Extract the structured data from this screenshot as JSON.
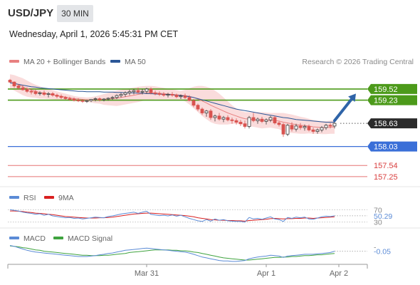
{
  "header": {
    "symbol": "USD/JPY",
    "timeframe": "30 MIN",
    "datetime": "Wednesday, April 1, 2026 5:45:31 PM CET",
    "credit": "Research © 2026 Trading Central"
  },
  "colors": {
    "bollinger_fill": "#f9d6d6",
    "ma20": "#e88080",
    "ma50": "#2b5797",
    "resistance": "#4c9a1a",
    "support_blue": "#3a6fd8",
    "support_red": "#e57373",
    "candle_up": "#3a3a3a",
    "candle_down": "#d9534f",
    "arrow": "#2f64a8",
    "rsi": "#5b8bd6",
    "rsi_ma": "#d92020",
    "macd": "#5b8bd6",
    "macd_signal": "#3fa33f"
  },
  "legend": {
    "ma20": "MA 20 + Bollinger Bands",
    "ma50": "MA 50",
    "rsi": "RSI",
    "rsi_ma": "9MA",
    "macd": "MACD",
    "macd_signal": "MACD Signal"
  },
  "chart_data": [
    {
      "type": "candlestick",
      "ylim": [
        157.1,
        159.98
      ],
      "x_ticks": [
        {
          "label": "Mar 31",
          "index": 32
        },
        {
          "label": "Apr 1",
          "index": 60
        },
        {
          "label": "Apr 2",
          "index": 77
        }
      ],
      "candles": [
        [
          159.75,
          159.78,
          159.68,
          159.7
        ],
        [
          159.7,
          159.72,
          159.55,
          159.6
        ],
        [
          159.6,
          159.65,
          159.5,
          159.55
        ],
        [
          159.55,
          159.62,
          159.48,
          159.5
        ],
        [
          159.5,
          159.56,
          159.42,
          159.46
        ],
        [
          159.46,
          159.52,
          159.38,
          159.45
        ],
        [
          159.45,
          159.5,
          159.36,
          159.4
        ],
        [
          159.4,
          159.46,
          159.35,
          159.42
        ],
        [
          159.42,
          159.48,
          159.34,
          159.38
        ],
        [
          159.38,
          159.44,
          159.3,
          159.4
        ],
        [
          159.4,
          159.44,
          159.32,
          159.36
        ],
        [
          159.36,
          159.4,
          159.28,
          159.33
        ],
        [
          159.33,
          159.38,
          159.26,
          159.3
        ],
        [
          159.3,
          159.34,
          159.24,
          159.27
        ],
        [
          159.27,
          159.32,
          159.22,
          159.26
        ],
        [
          159.26,
          159.3,
          159.2,
          159.23
        ],
        [
          159.23,
          159.28,
          159.18,
          159.22
        ],
        [
          159.22,
          159.26,
          159.16,
          159.2
        ],
        [
          159.2,
          159.24,
          159.16,
          159.22
        ],
        [
          159.22,
          159.26,
          159.18,
          159.25
        ],
        [
          159.25,
          159.3,
          159.2,
          159.27
        ],
        [
          159.27,
          159.3,
          159.2,
          159.24
        ],
        [
          159.24,
          159.28,
          159.2,
          159.26
        ],
        [
          159.26,
          159.3,
          159.22,
          159.28
        ],
        [
          159.28,
          159.34,
          159.24,
          159.3
        ],
        [
          159.3,
          159.38,
          159.26,
          159.35
        ],
        [
          159.35,
          159.42,
          159.3,
          159.38
        ],
        [
          159.38,
          159.46,
          159.32,
          159.42
        ],
        [
          159.42,
          159.5,
          159.36,
          159.45
        ],
        [
          159.45,
          159.52,
          159.38,
          159.48
        ],
        [
          159.48,
          159.55,
          159.4,
          159.44
        ],
        [
          159.44,
          159.52,
          159.38,
          159.46
        ],
        [
          159.46,
          159.55,
          159.4,
          159.52
        ],
        [
          159.52,
          159.56,
          159.38,
          159.42
        ],
        [
          159.42,
          159.48,
          159.36,
          159.4
        ],
        [
          159.4,
          159.46,
          159.34,
          159.38
        ],
        [
          159.38,
          159.44,
          159.32,
          159.36
        ],
        [
          159.36,
          159.42,
          159.3,
          159.38
        ],
        [
          159.38,
          159.44,
          159.32,
          159.36
        ],
        [
          159.36,
          159.4,
          159.28,
          159.32
        ],
        [
          159.32,
          159.38,
          159.26,
          159.34
        ],
        [
          159.34,
          159.4,
          159.26,
          159.3
        ],
        [
          159.3,
          159.36,
          159.2,
          159.22
        ],
        [
          159.22,
          159.26,
          159.05,
          159.1
        ],
        [
          159.1,
          159.14,
          158.95,
          159.0
        ],
        [
          159.0,
          159.04,
          158.85,
          158.9
        ],
        [
          158.9,
          158.98,
          158.8,
          158.95
        ],
        [
          158.95,
          159.0,
          158.72,
          158.78
        ],
        [
          158.78,
          158.86,
          158.68,
          158.82
        ],
        [
          158.82,
          158.9,
          158.7,
          158.74
        ],
        [
          158.74,
          158.82,
          158.66,
          158.78
        ],
        [
          158.78,
          158.84,
          158.68,
          158.72
        ],
        [
          158.72,
          158.78,
          158.62,
          158.7
        ],
        [
          158.7,
          158.76,
          158.6,
          158.66
        ],
        [
          158.66,
          158.72,
          158.56,
          158.62
        ],
        [
          158.62,
          158.7,
          158.5,
          158.55
        ],
        [
          158.55,
          158.82,
          158.5,
          158.78
        ],
        [
          158.78,
          158.9,
          158.66,
          158.7
        ],
        [
          158.7,
          158.78,
          158.62,
          158.74
        ],
        [
          158.74,
          158.8,
          158.64,
          158.68
        ],
        [
          158.68,
          158.76,
          158.6,
          158.72
        ],
        [
          158.72,
          158.82,
          158.66,
          158.78
        ],
        [
          158.78,
          158.82,
          158.6,
          158.64
        ],
        [
          158.64,
          158.68,
          158.55,
          158.6
        ],
        [
          158.6,
          158.64,
          158.28,
          158.35
        ],
        [
          158.35,
          158.62,
          158.3,
          158.58
        ],
        [
          158.58,
          158.66,
          158.42,
          158.48
        ],
        [
          158.48,
          158.62,
          158.42,
          158.56
        ],
        [
          158.56,
          158.64,
          158.46,
          158.52
        ],
        [
          158.52,
          158.6,
          158.44,
          158.55
        ],
        [
          158.55,
          158.6,
          158.42,
          158.46
        ],
        [
          158.46,
          158.52,
          158.36,
          158.42
        ],
        [
          158.42,
          158.5,
          158.36,
          158.46
        ],
        [
          158.46,
          158.56,
          158.4,
          158.52
        ],
        [
          158.52,
          158.62,
          158.46,
          158.58
        ],
        [
          158.58,
          158.64,
          158.5,
          158.56
        ],
        [
          158.56,
          158.66,
          158.5,
          158.63
        ]
      ],
      "ma20": [
        159.72,
        159.68,
        159.63,
        159.58,
        159.53,
        159.49,
        159.46,
        159.43,
        159.41,
        159.39,
        159.37,
        159.35,
        159.33,
        159.31,
        159.29,
        159.27,
        159.26,
        159.25,
        159.24,
        159.24,
        159.24,
        159.25,
        159.25,
        159.26,
        159.27,
        159.28,
        159.3,
        159.32,
        159.34,
        159.36,
        159.38,
        159.4,
        159.42,
        159.42,
        159.42,
        159.41,
        159.4,
        159.39,
        159.38,
        159.37,
        159.36,
        159.35,
        159.33,
        159.3,
        159.26,
        159.21,
        159.16,
        159.1,
        159.05,
        159.0,
        158.95,
        158.9,
        158.86,
        158.82,
        158.78,
        158.75,
        158.74,
        158.73,
        158.72,
        158.71,
        158.71,
        158.71,
        158.7,
        158.69,
        158.66,
        158.64,
        158.62,
        158.6,
        158.58,
        158.57,
        158.56,
        158.54,
        158.53,
        158.52,
        158.52,
        158.53,
        158.54
      ],
      "bb_upper": [
        159.9,
        159.88,
        159.84,
        159.8,
        159.74,
        159.68,
        159.63,
        159.59,
        159.55,
        159.52,
        159.49,
        159.46,
        159.43,
        159.4,
        159.37,
        159.34,
        159.32,
        159.31,
        159.3,
        159.31,
        159.33,
        159.36,
        159.39,
        159.42,
        159.45,
        159.48,
        159.5,
        159.52,
        159.54,
        159.56,
        159.58,
        159.59,
        159.6,
        159.6,
        159.59,
        159.57,
        159.55,
        159.53,
        159.51,
        159.49,
        159.47,
        159.5,
        159.54,
        159.58,
        159.6,
        159.6,
        159.58,
        159.54,
        159.48,
        159.4,
        159.3,
        159.2,
        159.1,
        159.02,
        158.96,
        158.92,
        158.92,
        158.92,
        158.92,
        158.92,
        158.91,
        158.9,
        158.9,
        158.9,
        158.9,
        158.88,
        158.86,
        158.83,
        158.8,
        158.78,
        158.75,
        158.72,
        158.7,
        158.69,
        158.69,
        158.7,
        158.72
      ],
      "bb_lower": [
        159.54,
        159.48,
        159.42,
        159.36,
        159.32,
        159.3,
        159.29,
        159.27,
        159.27,
        159.26,
        159.25,
        159.24,
        159.23,
        159.22,
        159.21,
        159.2,
        159.2,
        159.19,
        159.18,
        159.17,
        159.15,
        159.14,
        159.11,
        159.1,
        159.09,
        159.08,
        159.1,
        159.12,
        159.14,
        159.16,
        159.18,
        159.21,
        159.24,
        159.24,
        159.25,
        159.25,
        159.25,
        159.25,
        159.25,
        159.25,
        159.25,
        159.2,
        159.12,
        159.02,
        158.92,
        158.82,
        158.74,
        158.66,
        158.62,
        158.6,
        158.6,
        158.6,
        158.62,
        158.62,
        158.6,
        158.58,
        158.56,
        158.54,
        158.52,
        158.5,
        158.51,
        158.52,
        158.5,
        158.48,
        158.42,
        158.4,
        158.38,
        158.37,
        158.36,
        158.36,
        158.37,
        158.36,
        158.36,
        158.35,
        158.35,
        158.36,
        158.36
      ],
      "ma50": [
        159.68,
        159.66,
        159.64,
        159.62,
        159.6,
        159.58,
        159.57,
        159.55,
        159.54,
        159.53,
        159.52,
        159.51,
        159.5,
        159.49,
        159.48,
        159.47,
        159.46,
        159.46,
        159.45,
        159.45,
        159.45,
        159.45,
        159.44,
        159.44,
        159.44,
        159.43,
        159.43,
        159.42,
        159.42,
        159.42,
        159.41,
        159.41,
        159.4,
        159.4,
        159.39,
        159.39,
        159.38,
        159.38,
        159.37,
        159.36,
        159.35,
        159.34,
        159.32,
        159.3,
        159.27,
        159.24,
        159.21,
        159.18,
        159.15,
        159.12,
        159.09,
        159.06,
        159.03,
        159.0,
        158.98,
        158.96,
        158.94,
        158.92,
        158.9,
        158.88,
        158.86,
        158.84,
        158.82,
        158.8,
        158.78,
        158.77,
        158.75,
        158.73,
        158.72,
        158.71,
        158.7,
        158.69,
        158.68,
        158.67,
        158.66,
        158.66,
        158.66
      ],
      "levels": [
        {
          "value": 159.52,
          "label": "159.52",
          "kind": "resistance"
        },
        {
          "value": 159.23,
          "label": "159.23",
          "kind": "resistance"
        },
        {
          "value": 158.63,
          "label": "158.63",
          "kind": "current"
        },
        {
          "value": 158.03,
          "label": "158.03",
          "kind": "support_blue"
        },
        {
          "value": 157.54,
          "label": "157.54",
          "kind": "support_red"
        },
        {
          "value": 157.25,
          "label": "157.25",
          "kind": "support_red"
        }
      ],
      "arrow": {
        "from": [
          76,
          158.7
        ],
        "to": [
          81,
          159.4
        ]
      }
    },
    {
      "type": "line",
      "name": "RSI",
      "ylim": [
        20,
        80
      ],
      "levels": [
        {
          "value": 70,
          "label": "70"
        },
        {
          "value": 30,
          "label": "30"
        }
      ],
      "current_label": "50.29",
      "rsi": [
        70,
        68,
        66,
        62,
        60,
        58,
        55,
        57,
        52,
        55,
        50,
        48,
        46,
        44,
        45,
        42,
        43,
        40,
        42,
        44,
        46,
        45,
        44,
        48,
        50,
        53,
        56,
        58,
        60,
        62,
        58,
        62,
        65,
        55,
        53,
        51,
        52,
        50,
        53,
        49,
        52,
        47,
        42,
        38,
        34,
        32,
        38,
        33,
        40,
        36,
        38,
        34,
        33,
        32,
        32,
        30,
        45,
        40,
        42,
        39,
        43,
        47,
        40,
        38,
        32,
        45,
        42,
        46,
        44,
        46,
        40,
        39,
        43,
        47,
        49,
        48,
        50.29
      ],
      "rsi_ma": [
        66,
        66,
        65,
        64,
        62,
        61,
        59,
        58,
        57,
        55,
        54,
        52,
        50,
        48,
        47,
        46,
        45,
        44,
        43,
        43,
        43,
        44,
        44,
        45,
        46,
        48,
        50,
        52,
        54,
        56,
        57,
        58,
        59,
        59,
        58,
        57,
        56,
        55,
        54,
        53,
        52,
        51,
        49,
        47,
        44,
        42,
        40,
        38,
        37,
        36,
        36,
        35,
        35,
        34,
        34,
        33,
        35,
        36,
        37,
        38,
        39,
        41,
        42,
        41,
        40,
        41,
        41,
        42,
        42,
        43,
        43,
        42,
        43,
        44,
        45,
        46,
        47
      ]
    },
    {
      "type": "line",
      "name": "MACD",
      "ylim": [
        -0.33,
        0.12
      ],
      "levels": [
        {
          "value": 0.05,
          "label": "-"
        }
      ],
      "current_label": "-0.05",
      "macd": [
        0.08,
        0.06,
        0.03,
        0.0,
        -0.03,
        -0.05,
        -0.07,
        -0.08,
        -0.09,
        -0.1,
        -0.11,
        -0.12,
        -0.13,
        -0.14,
        -0.15,
        -0.16,
        -0.17,
        -0.17,
        -0.17,
        -0.16,
        -0.15,
        -0.13,
        -0.12,
        -0.1,
        -0.09,
        -0.07,
        -0.05,
        -0.03,
        -0.02,
        -0.01,
        0.0,
        0.01,
        0.02,
        0.01,
        0.0,
        -0.01,
        -0.02,
        -0.03,
        -0.04,
        -0.05,
        -0.06,
        -0.07,
        -0.09,
        -0.12,
        -0.15,
        -0.18,
        -0.2,
        -0.22,
        -0.24,
        -0.26,
        -0.27,
        -0.27,
        -0.28,
        -0.28,
        -0.27,
        -0.26,
        -0.22,
        -0.2,
        -0.18,
        -0.17,
        -0.16,
        -0.14,
        -0.15,
        -0.16,
        -0.19,
        -0.16,
        -0.15,
        -0.14,
        -0.13,
        -0.12,
        -0.12,
        -0.12,
        -0.11,
        -0.1,
        -0.09,
        -0.08,
        -0.05
      ],
      "signal": [
        0.07,
        0.06,
        0.05,
        0.03,
        0.02,
        0.0,
        -0.02,
        -0.03,
        -0.05,
        -0.06,
        -0.07,
        -0.08,
        -0.09,
        -0.1,
        -0.11,
        -0.12,
        -0.13,
        -0.14,
        -0.14,
        -0.15,
        -0.15,
        -0.15,
        -0.14,
        -0.14,
        -0.13,
        -0.12,
        -0.11,
        -0.1,
        -0.08,
        -0.07,
        -0.06,
        -0.05,
        -0.04,
        -0.03,
        -0.02,
        -0.02,
        -0.02,
        -0.02,
        -0.03,
        -0.03,
        -0.04,
        -0.04,
        -0.05,
        -0.07,
        -0.08,
        -0.1,
        -0.12,
        -0.14,
        -0.16,
        -0.18,
        -0.2,
        -0.21,
        -0.22,
        -0.23,
        -0.24,
        -0.25,
        -0.25,
        -0.24,
        -0.23,
        -0.22,
        -0.21,
        -0.2,
        -0.19,
        -0.19,
        -0.18,
        -0.18,
        -0.17,
        -0.17,
        -0.16,
        -0.15,
        -0.15,
        -0.14,
        -0.13,
        -0.13,
        -0.12,
        -0.11,
        -0.1
      ]
    }
  ]
}
